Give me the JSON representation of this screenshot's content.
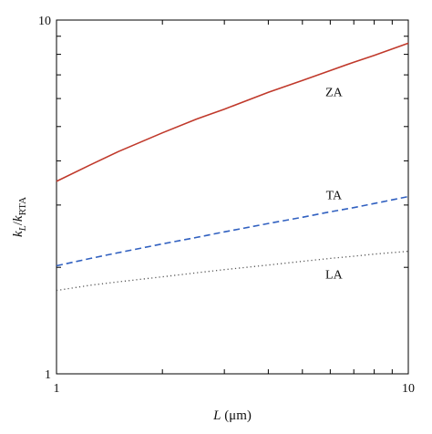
{
  "chart_data": {
    "type": "line",
    "xscale": "log",
    "yscale": "log",
    "xlim": [
      1,
      10
    ],
    "ylim": [
      1,
      10
    ],
    "x_ticks": [
      "1",
      "10"
    ],
    "y_ticks": [
      "1",
      "10"
    ],
    "xlabel_italic": "L",
    "xlabel_rest": " (μm)",
    "ylabel_k1": "k",
    "ylabel_sub1": "L",
    "ylabel_sep": "/",
    "ylabel_k2": "k",
    "ylabel_sub2": "RTA",
    "grid": false,
    "series": [
      {
        "name": "ZA",
        "color": "#c0392b",
        "style": "solid",
        "x": [
          1,
          1.25,
          1.5,
          2,
          2.5,
          3,
          4,
          5,
          6,
          7,
          8,
          10
        ],
        "y": [
          3.5,
          3.9,
          4.25,
          4.8,
          5.25,
          5.6,
          6.25,
          6.75,
          7.2,
          7.6,
          7.95,
          8.6
        ]
      },
      {
        "name": "TA",
        "color": "#3060c0",
        "style": "dashed",
        "x": [
          1,
          1.25,
          1.5,
          2,
          2.5,
          3,
          4,
          5,
          6,
          7,
          8,
          10
        ],
        "y": [
          2.02,
          2.12,
          2.2,
          2.33,
          2.43,
          2.52,
          2.66,
          2.77,
          2.87,
          2.95,
          3.03,
          3.17
        ]
      },
      {
        "name": "LA",
        "color": "#555555",
        "style": "dotted",
        "x": [
          1,
          1.25,
          1.5,
          2,
          2.5,
          3,
          4,
          5,
          6,
          7,
          8,
          10
        ],
        "y": [
          1.72,
          1.78,
          1.82,
          1.88,
          1.93,
          1.97,
          2.03,
          2.08,
          2.12,
          2.15,
          2.18,
          2.22
        ]
      }
    ]
  }
}
